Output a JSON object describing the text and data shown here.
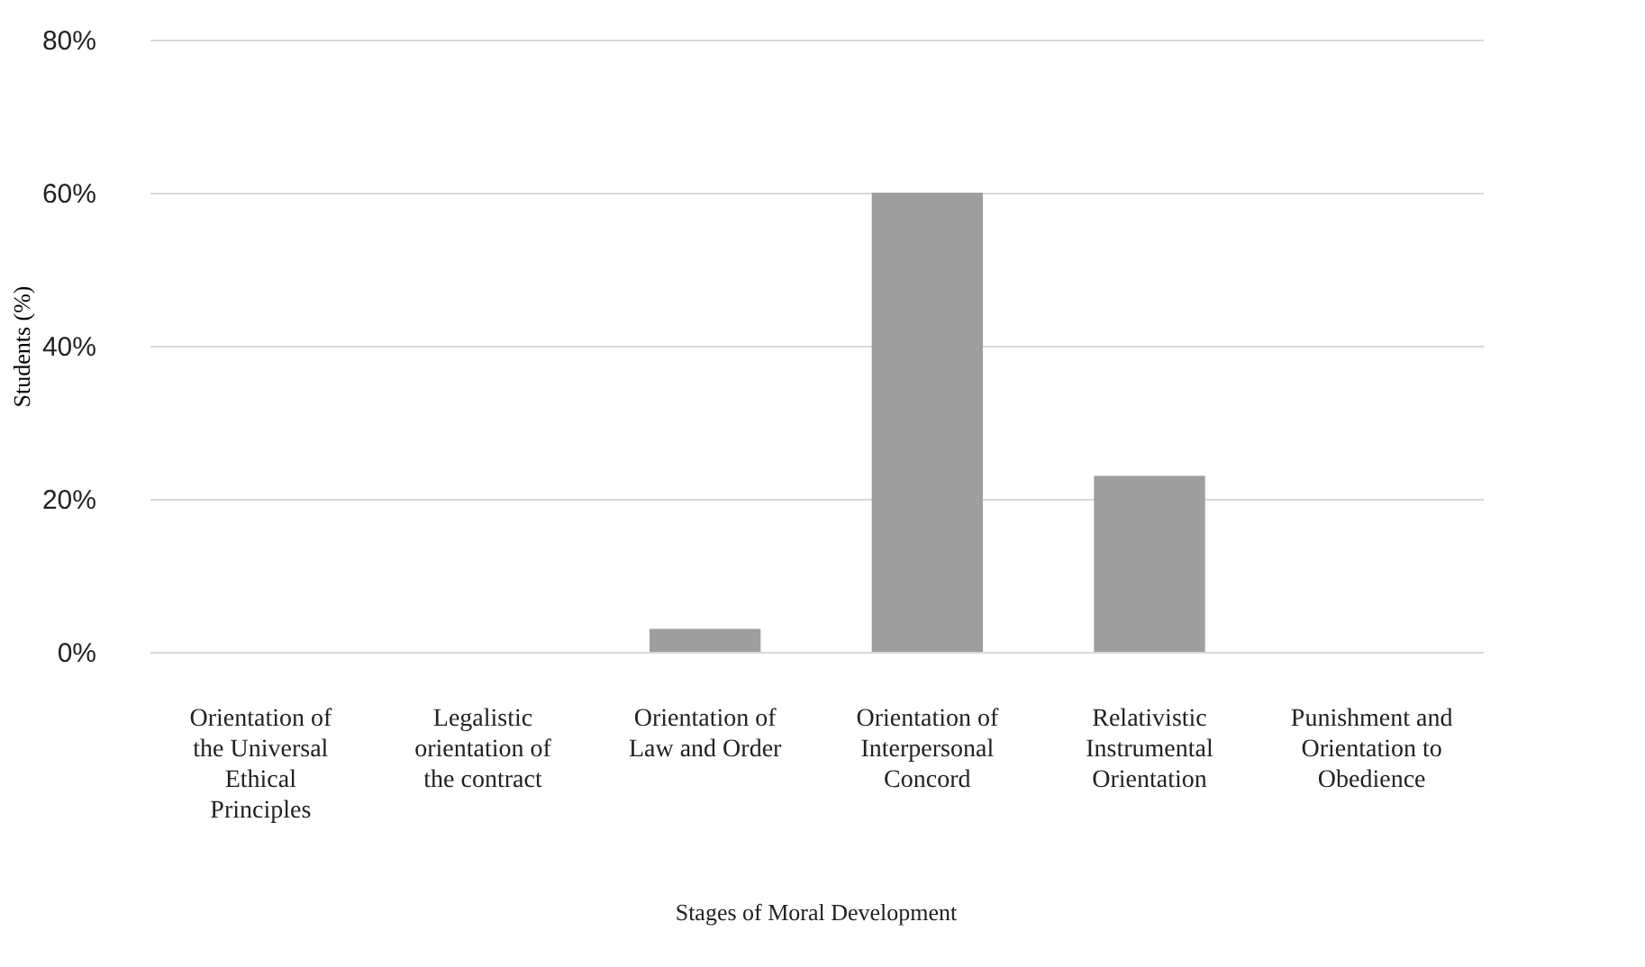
{
  "chart_data": {
    "type": "bar",
    "xlabel": "Stages of Moral Development",
    "ylabel": "Students (%)",
    "categories": [
      "Orientation of the Universal Ethical Principles",
      "Legalistic orientation of the contract",
      "Orientation of Law and Order",
      "Orientation of Interpersonal Concord",
      "Relativistic Instrumental Orientation",
      "Punishment and Orientation to Obedience"
    ],
    "values": [
      0,
      0,
      3,
      60,
      23,
      0
    ],
    "color": "#9e9e9e",
    "ylim": [
      0,
      80
    ],
    "yticks": [
      {
        "value": 0,
        "label": "0%"
      },
      {
        "value": 20,
        "label": "20%"
      },
      {
        "value": 40,
        "label": "40%"
      },
      {
        "value": 60,
        "label": "60%"
      },
      {
        "value": 80,
        "label": "80%"
      }
    ],
    "grid": "y"
  }
}
